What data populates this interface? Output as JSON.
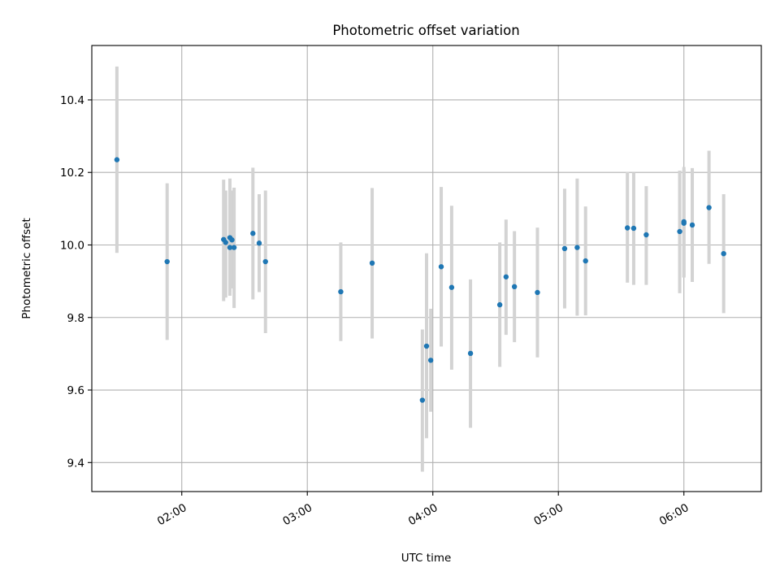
{
  "chart_data": {
    "type": "scatter",
    "title": "Photometric offset variation",
    "xlabel": "UTC time",
    "ylabel": "Photometric offset",
    "xlim": [
      "01:17",
      "06:37"
    ],
    "ylim": [
      9.32,
      10.55
    ],
    "x_ticks": [
      "02:00",
      "03:00",
      "04:00",
      "05:00",
      "06:00"
    ],
    "y_ticks": [
      9.4,
      9.6,
      9.8,
      10.0,
      10.2,
      10.4
    ],
    "grid": true,
    "colors": {
      "points": "#1f77b4",
      "errorbars": "#d3d3d3"
    },
    "points": [
      {
        "t": "01:29",
        "y": 10.235,
        "lo": 9.978,
        "hi": 10.492
      },
      {
        "t": "01:53",
        "y": 9.954,
        "lo": 9.738,
        "hi": 10.17
      },
      {
        "t": "02:20",
        "y": 10.015,
        "lo": 9.845,
        "hi": 10.18
      },
      {
        "t": "02:21",
        "y": 10.007,
        "lo": 9.855,
        "hi": 10.15
      },
      {
        "t": "02:23",
        "y": 10.02,
        "lo": 9.86,
        "hi": 10.183
      },
      {
        "t": "02:23",
        "y": 9.993,
        "lo": 9.87,
        "hi": 10.11
      },
      {
        "t": "02:24",
        "y": 10.014,
        "lo": 9.88,
        "hi": 10.15
      },
      {
        "t": "02:25",
        "y": 9.993,
        "lo": 9.826,
        "hi": 10.158
      },
      {
        "t": "02:34",
        "y": 10.032,
        "lo": 9.85,
        "hi": 10.213
      },
      {
        "t": "02:37",
        "y": 10.005,
        "lo": 9.87,
        "hi": 10.14
      },
      {
        "t": "02:40",
        "y": 9.954,
        "lo": 9.757,
        "hi": 10.15
      },
      {
        "t": "03:16",
        "y": 9.871,
        "lo": 9.735,
        "hi": 10.007
      },
      {
        "t": "03:31",
        "y": 9.95,
        "lo": 9.742,
        "hi": 10.157
      },
      {
        "t": "03:55",
        "y": 9.572,
        "lo": 9.375,
        "hi": 9.767
      },
      {
        "t": "03:57",
        "y": 9.721,
        "lo": 9.467,
        "hi": 9.977
      },
      {
        "t": "03:59",
        "y": 9.682,
        "lo": 9.54,
        "hi": 9.824
      },
      {
        "t": "04:04",
        "y": 9.94,
        "lo": 9.72,
        "hi": 10.16
      },
      {
        "t": "04:09",
        "y": 9.883,
        "lo": 9.656,
        "hi": 10.108
      },
      {
        "t": "04:18",
        "y": 9.701,
        "lo": 9.496,
        "hi": 9.905
      },
      {
        "t": "04:32",
        "y": 9.835,
        "lo": 9.664,
        "hi": 10.007
      },
      {
        "t": "04:35",
        "y": 9.912,
        "lo": 9.752,
        "hi": 10.07
      },
      {
        "t": "04:39",
        "y": 9.885,
        "lo": 9.732,
        "hi": 10.038
      },
      {
        "t": "04:50",
        "y": 9.869,
        "lo": 9.69,
        "hi": 10.048
      },
      {
        "t": "05:03",
        "y": 9.99,
        "lo": 9.825,
        "hi": 10.155
      },
      {
        "t": "05:09",
        "y": 9.993,
        "lo": 9.805,
        "hi": 10.183
      },
      {
        "t": "05:13",
        "y": 9.956,
        "lo": 9.806,
        "hi": 10.106
      },
      {
        "t": "05:33",
        "y": 10.047,
        "lo": 9.896,
        "hi": 10.202
      },
      {
        "t": "05:36",
        "y": 10.046,
        "lo": 9.89,
        "hi": 10.2
      },
      {
        "t": "05:42",
        "y": 10.028,
        "lo": 9.89,
        "hi": 10.162
      },
      {
        "t": "05:58",
        "y": 10.037,
        "lo": 9.867,
        "hi": 10.205
      },
      {
        "t": "06:00",
        "y": 10.064,
        "lo": 9.91,
        "hi": 10.215
      },
      {
        "t": "06:00",
        "y": 10.06,
        "lo": 9.912,
        "hi": 10.207
      },
      {
        "t": "06:04",
        "y": 10.055,
        "lo": 9.898,
        "hi": 10.212
      },
      {
        "t": "06:12",
        "y": 10.103,
        "lo": 9.948,
        "hi": 10.26
      },
      {
        "t": "06:19",
        "y": 9.976,
        "lo": 9.812,
        "hi": 10.14
      }
    ]
  }
}
